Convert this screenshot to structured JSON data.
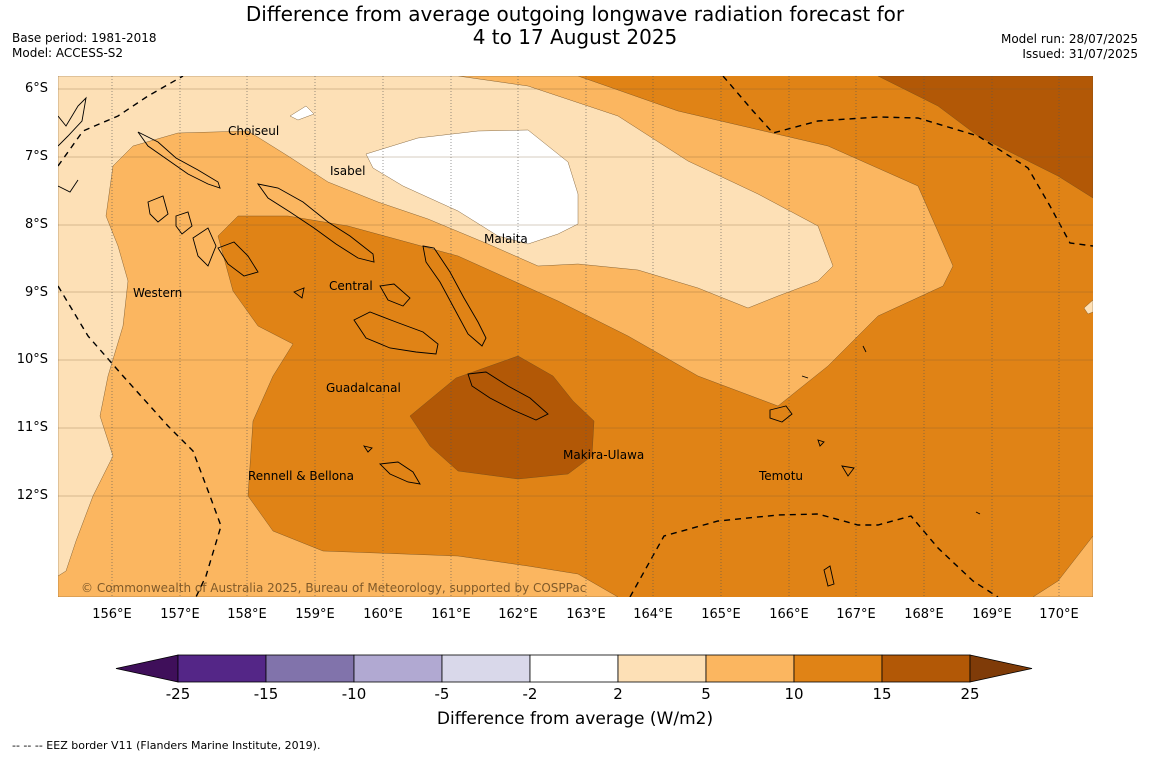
{
  "title": {
    "line1": "Difference from average outgoing longwave radiation forecast for",
    "line2": "4 to 17 August 2025"
  },
  "meta_left": {
    "base_period": "Base period: 1981-2018",
    "model": "Model: ACCESS-S2"
  },
  "meta_right": {
    "model_run": "Model run: 28/07/2025",
    "issued": "Issued: 31/07/2025"
  },
  "map": {
    "lat_labels": [
      "6°S",
      "7°S",
      "8°S",
      "9°S",
      "10°S",
      "11°S",
      "12°S"
    ],
    "lon_labels": [
      "156°E",
      "157°E",
      "158°E",
      "159°E",
      "160°E",
      "161°E",
      "162°E",
      "163°E",
      "164°E",
      "165°E",
      "166°E",
      "167°E",
      "168°E",
      "169°E",
      "170°E"
    ],
    "provinces": [
      "Choiseul",
      "Isabel",
      "Malaita",
      "Central",
      "Western",
      "Guadalcanal",
      "Makira-Ulawa",
      "Rennell & Bellona",
      "Temotu"
    ],
    "copyright": "© Commonwealth of Australia 2025, Bureau of Meteorology, supported by COSPPac",
    "colors": {
      "band_2_5": "#fde0b6",
      "band_5_10": "#fbb660",
      "band_10_15": "#e08316",
      "band_15_25": "#b25806"
    }
  },
  "colorbar": {
    "ticks": [
      "-25",
      "-15",
      "-10",
      "-5",
      "-2",
      "2",
      "5",
      "10",
      "15",
      "25"
    ],
    "colors": [
      "#3f0f5a",
      "#542687",
      "#8173ab",
      "#b1a9d2",
      "#d9d8ea",
      "#ffffff",
      "#fde0b6",
      "#fbb660",
      "#e08316",
      "#b25806",
      "#7f3b08"
    ],
    "label": "Difference from average (W/m2)"
  },
  "footnote": "--  --  -- EEZ border V11 (Flanders Marine Institute, 2019)."
}
